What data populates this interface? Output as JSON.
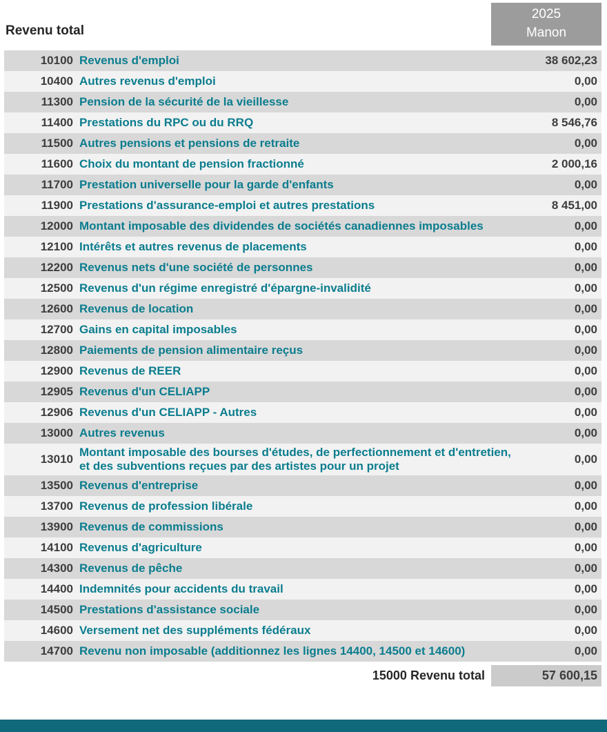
{
  "header": {
    "title": "Revenu total",
    "year": "2025",
    "person": "Manon"
  },
  "table": {
    "rows": [
      {
        "line": "10100",
        "label": "Revenus d'emploi",
        "amount": "38 602,23"
      },
      {
        "line": "10400",
        "label": "Autres revenus d'emploi",
        "amount": "0,00"
      },
      {
        "line": "11300",
        "label": "Pension de la sécurité de la vieillesse",
        "amount": "0,00"
      },
      {
        "line": "11400",
        "label": "Prestations du RPC ou du RRQ",
        "amount": "8 546,76"
      },
      {
        "line": "11500",
        "label": "Autres pensions et pensions de retraite",
        "amount": "0,00"
      },
      {
        "line": "11600",
        "label": "Choix du montant de pension fractionné",
        "amount": "2 000,16"
      },
      {
        "line": "11700",
        "label": "Prestation universelle pour la garde d'enfants",
        "amount": "0,00"
      },
      {
        "line": "11900",
        "label": "Prestations d'assurance-emploi et autres prestations",
        "amount": "8 451,00"
      },
      {
        "line": "12000",
        "label": "Montant imposable des dividendes de sociétés canadiennes imposables",
        "amount": "0,00"
      },
      {
        "line": "12100",
        "label": "Intérêts et autres revenus de placements",
        "amount": "0,00"
      },
      {
        "line": "12200",
        "label": "Revenus nets d'une société de personnes",
        "amount": "0,00"
      },
      {
        "line": "12500",
        "label": "Revenus d'un régime enregistré d'épargne-invalidité",
        "amount": "0,00"
      },
      {
        "line": "12600",
        "label": "Revenus de location",
        "amount": "0,00"
      },
      {
        "line": "12700",
        "label": "Gains en capital imposables",
        "amount": "0,00"
      },
      {
        "line": "12800",
        "label": "Paiements de pension alimentaire reçus",
        "amount": "0,00"
      },
      {
        "line": "12900",
        "label": "Revenus de REER",
        "amount": "0,00"
      },
      {
        "line": "12905",
        "label": "Revenus d'un CELIAPP",
        "amount": "0,00"
      },
      {
        "line": "12906",
        "label": "Revenus d'un CELIAPP - Autres",
        "amount": "0,00"
      },
      {
        "line": "13000",
        "label": "Autres revenus",
        "amount": "0,00"
      },
      {
        "line": "13010",
        "label": "Montant imposable des bourses d'études, de perfectionnement et d'entretien, et des subventions reçues par des artistes pour un projet",
        "amount": "0,00"
      },
      {
        "line": "13500",
        "label": "Revenus d'entreprise",
        "amount": "0,00"
      },
      {
        "line": "13700",
        "label": "Revenus de profession libérale",
        "amount": "0,00"
      },
      {
        "line": "13900",
        "label": "Revenus de commissions",
        "amount": "0,00"
      },
      {
        "line": "14100",
        "label": "Revenus d'agriculture",
        "amount": "0,00"
      },
      {
        "line": "14300",
        "label": "Revenus de pêche",
        "amount": "0,00"
      },
      {
        "line": "14400",
        "label": "Indemnités pour accidents du travail",
        "amount": "0,00"
      },
      {
        "line": "14500",
        "label": "Prestations d'assistance sociale",
        "amount": "0,00"
      },
      {
        "line": "14600",
        "label": "Versement net des suppléments fédéraux",
        "amount": "0,00"
      },
      {
        "line": "14700",
        "label": "Revenu non imposable (additionnez les lignes 14400, 14500 et 14600)",
        "amount": "0,00"
      }
    ],
    "total": {
      "line": "15000",
      "label": "Revenu total",
      "amount": "57 600,15"
    }
  },
  "colors": {
    "label_teal": "#0b7d8e",
    "row_shaded": "#d8d8d8",
    "row_light": "#f2f2f2",
    "column_header_bg": "#9c9c9c",
    "total_box_bg": "#cbcbcb",
    "footer_bar": "#10697a"
  }
}
